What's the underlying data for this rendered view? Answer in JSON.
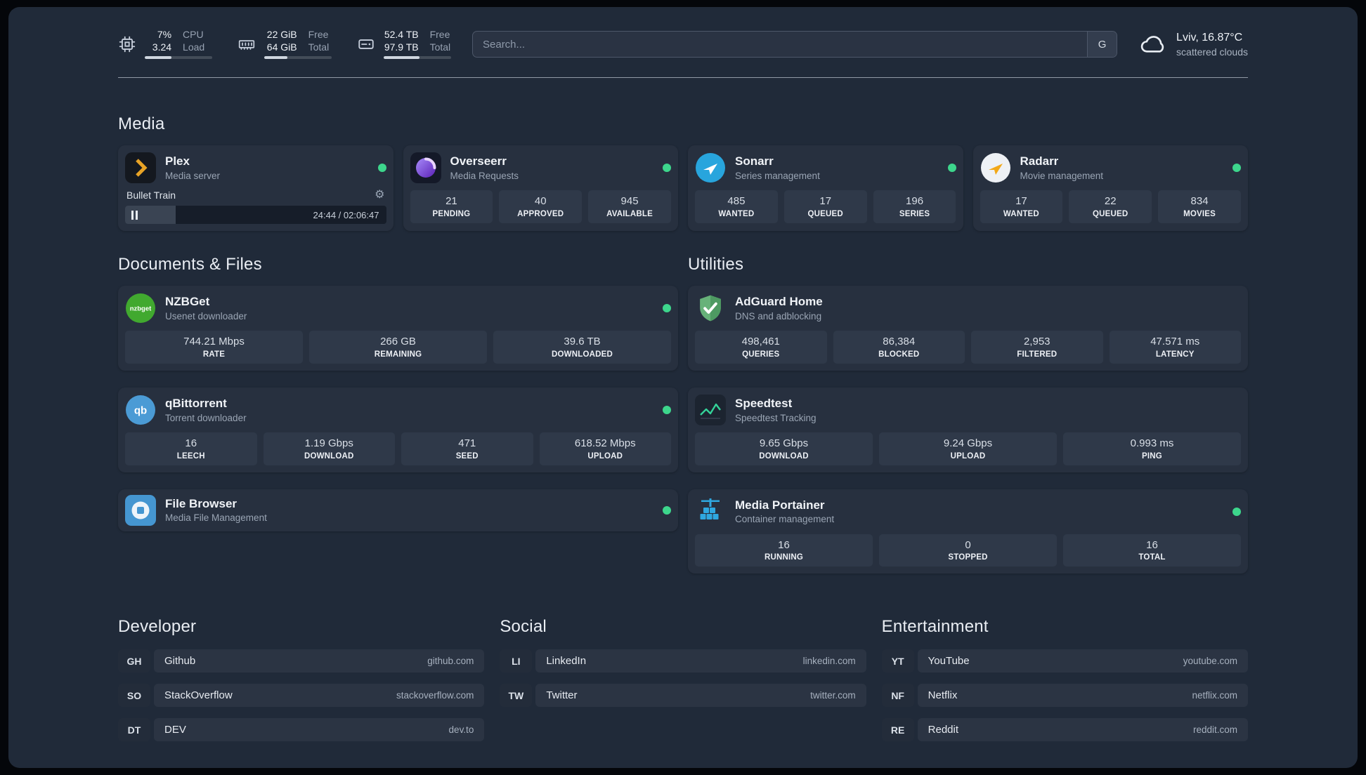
{
  "colors": {
    "background": "#202a39",
    "card": "#27303f",
    "stat_box": "#2f3949",
    "status_online": "#3dd68c",
    "plex_accent": "#e8a326"
  },
  "header": {
    "metrics": [
      {
        "value_primary": "7%",
        "value_secondary": "3.24",
        "label_primary": "CPU",
        "label_secondary": "Load",
        "progress": 40
      },
      {
        "value_primary": "22 GiB",
        "value_secondary": "64 GiB",
        "label_primary": "Free",
        "label_secondary": "Total",
        "progress": 34
      },
      {
        "value_primary": "52.4 TB",
        "value_secondary": "97.9 TB",
        "label_primary": "Free",
        "label_secondary": "Total",
        "progress": 53
      }
    ],
    "search": {
      "placeholder": "Search...",
      "provider": "G"
    },
    "weather": {
      "location": "Lviv, 16.87°C",
      "condition": "scattered clouds"
    }
  },
  "sections": {
    "media": {
      "title": "Media",
      "plex": {
        "name": "Plex",
        "description": "Media server",
        "now_playing": "Bullet Train",
        "time": "24:44 / 02:06:47",
        "progress": 19.5
      },
      "overseerr": {
        "name": "Overseerr",
        "description": "Media Requests",
        "stats": [
          {
            "value": "21",
            "label": "PENDING"
          },
          {
            "value": "40",
            "label": "APPROVED"
          },
          {
            "value": "945",
            "label": "AVAILABLE"
          }
        ]
      },
      "sonarr": {
        "name": "Sonarr",
        "description": "Series management",
        "stats": [
          {
            "value": "485",
            "label": "WANTED"
          },
          {
            "value": "17",
            "label": "QUEUED"
          },
          {
            "value": "196",
            "label": "SERIES"
          }
        ]
      },
      "radarr": {
        "name": "Radarr",
        "description": "Movie management",
        "stats": [
          {
            "value": "17",
            "label": "WANTED"
          },
          {
            "value": "22",
            "label": "QUEUED"
          },
          {
            "value": "834",
            "label": "MOVIES"
          }
        ]
      }
    },
    "documents": {
      "title": "Documents & Files",
      "nzbget": {
        "name": "NZBGet",
        "description": "Usenet downloader",
        "stats": [
          {
            "value": "744.21 Mbps",
            "label": "RATE"
          },
          {
            "value": "266 GB",
            "label": "REMAINING"
          },
          {
            "value": "39.6 TB",
            "label": "DOWNLOADED"
          }
        ]
      },
      "qbittorrent": {
        "name": "qBittorrent",
        "description": "Torrent downloader",
        "stats": [
          {
            "value": "16",
            "label": "LEECH"
          },
          {
            "value": "1.19 Gbps",
            "label": "DOWNLOAD"
          },
          {
            "value": "471",
            "label": "SEED"
          },
          {
            "value": "618.52 Mbps",
            "label": "UPLOAD"
          }
        ]
      },
      "filebrowser": {
        "name": "File Browser",
        "description": "Media File Management"
      }
    },
    "utilities": {
      "title": "Utilities",
      "adguard": {
        "name": "AdGuard Home",
        "description": "DNS and adblocking",
        "stats": [
          {
            "value": "498,461",
            "label": "QUERIES"
          },
          {
            "value": "86,384",
            "label": "BLOCKED"
          },
          {
            "value": "2,953",
            "label": "FILTERED"
          },
          {
            "value": "47.571 ms",
            "label": "LATENCY"
          }
        ]
      },
      "speedtest": {
        "name": "Speedtest",
        "description": "Speedtest Tracking",
        "stats": [
          {
            "value": "9.65 Gbps",
            "label": "DOWNLOAD"
          },
          {
            "value": "9.24 Gbps",
            "label": "UPLOAD"
          },
          {
            "value": "0.993 ms",
            "label": "PING"
          }
        ]
      },
      "portainer": {
        "name": "Media Portainer",
        "description": "Container management",
        "stats": [
          {
            "value": "16",
            "label": "RUNNING"
          },
          {
            "value": "0",
            "label": "STOPPED"
          },
          {
            "value": "16",
            "label": "TOTAL"
          }
        ]
      }
    },
    "bookmarks": [
      {
        "title": "Developer",
        "links": [
          {
            "abbr": "GH",
            "name": "Github",
            "href": "github.com"
          },
          {
            "abbr": "SO",
            "name": "StackOverflow",
            "href": "stackoverflow.com"
          },
          {
            "abbr": "DT",
            "name": "DEV",
            "href": "dev.to"
          }
        ]
      },
      {
        "title": "Social",
        "links": [
          {
            "abbr": "LI",
            "name": "LinkedIn",
            "href": "linkedin.com"
          },
          {
            "abbr": "TW",
            "name": "Twitter",
            "href": "twitter.com"
          }
        ]
      },
      {
        "title": "Entertainment",
        "links": [
          {
            "abbr": "YT",
            "name": "YouTube",
            "href": "youtube.com"
          },
          {
            "abbr": "NF",
            "name": "Netflix",
            "href": "netflix.com"
          },
          {
            "abbr": "RE",
            "name": "Reddit",
            "href": "reddit.com"
          }
        ]
      }
    ]
  }
}
